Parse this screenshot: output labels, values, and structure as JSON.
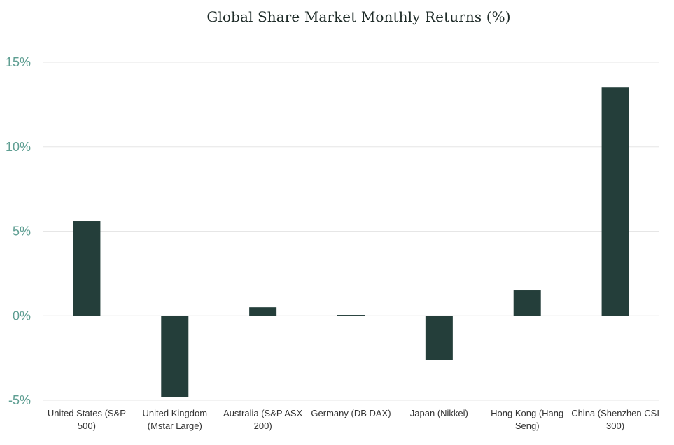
{
  "chart_data": {
    "type": "bar",
    "title": "Global Share Market Monthly Returns (%)",
    "xlabel": "",
    "ylabel": "",
    "categories": [
      [
        "United States (S&P",
        "500)"
      ],
      [
        "United Kingdom",
        "(Mstar Large)"
      ],
      [
        "Australia (S&P ASX",
        "200)"
      ],
      [
        "Germany (DB DAX)"
      ],
      [
        "Japan (Nikkei)"
      ],
      [
        "Hong Kong (Hang",
        "Seng)"
      ],
      [
        "China (Shenzhen CSI",
        "300)"
      ]
    ],
    "values": [
      5.6,
      -4.8,
      0.5,
      0.05,
      -2.6,
      1.5,
      13.5
    ],
    "ylim": [
      -5,
      15
    ],
    "yticks": [
      -5,
      0,
      5,
      10,
      15
    ],
    "ytick_labels": [
      "-5%",
      "0%",
      "5%",
      "10%",
      "15%"
    ],
    "grid": true,
    "legend": "none",
    "colors": {
      "bar": "#243e3a",
      "grid": "#e6e6e6",
      "ytick": "#5e9e92",
      "xtick": "#333333",
      "title": "#1e2b28"
    }
  }
}
